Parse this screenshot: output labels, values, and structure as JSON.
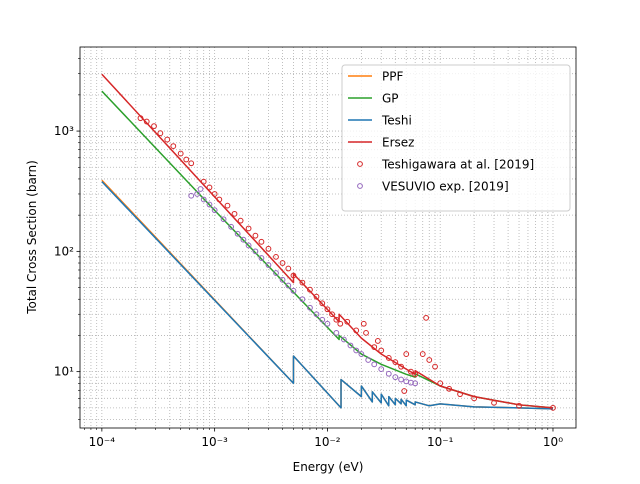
{
  "chart_data": {
    "type": "line",
    "xlabel": "Energy (eV)",
    "ylabel": "Total Cross Section (barn)",
    "xscale": "log",
    "yscale": "log",
    "xlim": [
      6.4e-05,
      1.6
    ],
    "ylim": [
      3.4,
      5000
    ],
    "xticks": [
      {
        "value": 0.0001,
        "label": "10⁻⁴"
      },
      {
        "value": 0.001,
        "label": "10⁻³"
      },
      {
        "value": 0.01,
        "label": "10⁻²"
      },
      {
        "value": 0.1,
        "label": "10⁻¹"
      },
      {
        "value": 1,
        "label": "10⁰"
      }
    ],
    "yticks": [
      {
        "value": 10,
        "label": "10¹"
      },
      {
        "value": 100,
        "label": "10²"
      },
      {
        "value": 1000,
        "label": "10³"
      }
    ],
    "xminorticks": [
      7e-05,
      8e-05,
      9e-05,
      0.0002,
      0.0003,
      0.0004,
      0.0005,
      0.0006,
      0.0007,
      0.0008,
      0.0009,
      0.002,
      0.003,
      0.004,
      0.005,
      0.006,
      0.007,
      0.008,
      0.009,
      0.02,
      0.03,
      0.04,
      0.05,
      0.06,
      0.07,
      0.08,
      0.09,
      0.2,
      0.3,
      0.4,
      0.5,
      0.6,
      0.7,
      0.8,
      0.9
    ],
    "yminorticks": [
      4,
      5,
      6,
      7,
      8,
      9,
      20,
      30,
      40,
      50,
      60,
      70,
      80,
      90,
      200,
      300,
      400,
      500,
      600,
      700,
      800,
      900,
      2000,
      3000,
      4000
    ],
    "grid": true,
    "legend": "upper right",
    "series": [
      {
        "name": "PPF",
        "color": "#ff7f0e",
        "kind": "line",
        "x": [
          0.0001,
          0.005,
          0.005,
          0.0132,
          0.0132,
          0.02,
          0.02,
          0.025,
          0.025,
          0.03,
          0.03,
          0.035,
          0.035,
          0.04,
          0.04,
          0.045,
          0.045,
          0.05,
          0.05,
          0.06,
          0.06,
          0.08,
          0.1,
          0.2,
          0.5,
          1
        ],
        "values": [
          390,
          8.0,
          13.5,
          5.0,
          8.6,
          6.2,
          7.6,
          5.6,
          6.8,
          5.5,
          6.5,
          5.2,
          6.2,
          5.3,
          6.0,
          5.4,
          5.9,
          5.2,
          5.8,
          5.3,
          5.6,
          5.2,
          5.4,
          5.1,
          5.0,
          4.9
        ]
      },
      {
        "name": "GP",
        "color": "#2ca02c",
        "kind": "line",
        "x": [
          0.0001,
          0.001,
          0.0127,
          0.0127,
          0.02,
          0.03,
          0.05,
          0.06,
          0.06,
          0.1,
          0.2,
          0.5,
          1
        ],
        "values": [
          2150,
          219,
          18.5,
          20,
          14,
          11.5,
          9.5,
          9.0,
          9.6,
          7.6,
          6.2,
          5.3,
          5.0
        ]
      },
      {
        "name": "Teshi",
        "color": "#1f77b4",
        "kind": "line",
        "x": [
          0.0001,
          0.005,
          0.005,
          0.0132,
          0.0132,
          0.02,
          0.02,
          0.025,
          0.025,
          0.03,
          0.03,
          0.035,
          0.035,
          0.04,
          0.04,
          0.045,
          0.045,
          0.05,
          0.05,
          0.06,
          0.06,
          0.08,
          0.1,
          0.2,
          0.5,
          1
        ],
        "values": [
          380,
          8.0,
          13.5,
          5.0,
          8.6,
          6.2,
          7.6,
          5.6,
          6.8,
          5.5,
          6.5,
          5.2,
          6.2,
          5.3,
          6.0,
          5.4,
          5.9,
          5.2,
          5.8,
          5.3,
          5.6,
          5.2,
          5.4,
          5.1,
          5.0,
          4.9
        ]
      },
      {
        "name": "Ersez",
        "color": "#d62728",
        "kind": "line",
        "x": [
          0.0001,
          0.005,
          0.005,
          0.0127,
          0.0127,
          0.02,
          0.03,
          0.05,
          0.06,
          0.06,
          0.1,
          0.2,
          0.5,
          1
        ],
        "values": [
          2970,
          55,
          65,
          26,
          30,
          19,
          14,
          10.5,
          9.5,
          10.2,
          7.6,
          6.2,
          5.3,
          5.0
        ]
      },
      {
        "name": "Teshigawara at al. [2019]",
        "color": "#d62728",
        "kind": "scatter",
        "x": [
          0.00022,
          0.00025,
          0.00029,
          0.00033,
          0.00038,
          0.00043,
          0.0005,
          0.00056,
          0.00062,
          0.0008,
          0.0009,
          0.001,
          0.0011,
          0.0013,
          0.0015,
          0.0017,
          0.002,
          0.0023,
          0.0026,
          0.003,
          0.0035,
          0.004,
          0.0045,
          0.005,
          0.006,
          0.007,
          0.008,
          0.009,
          0.01,
          0.011,
          0.012,
          0.013,
          0.015,
          0.018,
          0.021,
          0.022,
          0.026,
          0.028,
          0.03,
          0.035,
          0.04,
          0.045,
          0.048,
          0.05,
          0.055,
          0.06,
          0.07,
          0.075,
          0.08,
          0.09,
          0.1,
          0.12,
          0.15,
          0.2,
          0.3,
          0.5,
          1
        ],
        "values": [
          1280,
          1200,
          1100,
          960,
          850,
          750,
          650,
          580,
          540,
          380,
          340,
          300,
          270,
          240,
          205,
          180,
          155,
          135,
          120,
          105,
          90,
          80,
          72,
          63,
          55,
          48,
          42,
          37,
          33,
          30,
          27,
          25,
          26,
          22,
          25,
          21,
          16,
          18,
          15,
          13,
          12,
          11,
          6.9,
          14,
          10,
          9.5,
          14,
          28,
          12.5,
          11,
          8,
          7.2,
          6.5,
          6,
          5.5,
          5.2,
          5.0
        ]
      },
      {
        "name": "VESUVIO exp. [2019]",
        "color": "#9467bd",
        "kind": "scatter",
        "x": [
          0.00062,
          0.0007,
          0.00075,
          0.0008,
          0.0009,
          0.001,
          0.0012,
          0.0014,
          0.0016,
          0.0018,
          0.002,
          0.0023,
          0.0026,
          0.003,
          0.0035,
          0.004,
          0.0045,
          0.005,
          0.006,
          0.007,
          0.008,
          0.009,
          0.01,
          0.012,
          0.014,
          0.016,
          0.018,
          0.02,
          0.023,
          0.026,
          0.03,
          0.035,
          0.04,
          0.045,
          0.05,
          0.055,
          0.06
        ],
        "values": [
          290,
          300,
          330,
          270,
          245,
          220,
          185,
          160,
          140,
          125,
          112,
          100,
          88,
          77,
          66,
          58,
          52,
          47,
          40,
          34,
          30,
          27,
          25,
          21,
          18.5,
          16.5,
          15,
          14,
          12.5,
          11.5,
          10.5,
          9.6,
          9.0,
          8.6,
          8.3,
          8.1,
          8.0
        ]
      }
    ]
  }
}
